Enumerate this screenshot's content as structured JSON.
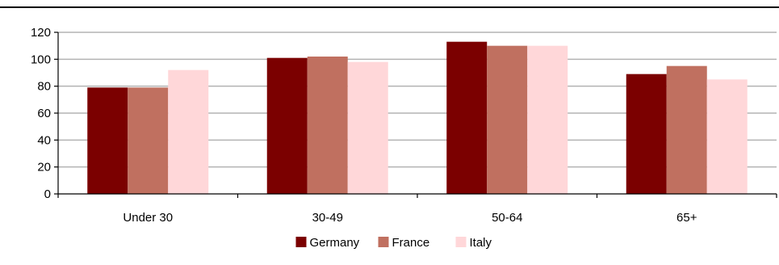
{
  "chart_data": {
    "type": "bar",
    "title": "",
    "xlabel": "",
    "ylabel": "",
    "categories": [
      "Under 30",
      "30-49",
      "50-64",
      "65+"
    ],
    "series": [
      {
        "name": "Germany",
        "color": "#7b0000",
        "values": [
          79,
          101,
          113,
          89
        ]
      },
      {
        "name": "France",
        "color": "#c07060",
        "values": [
          79,
          102,
          110,
          95
        ]
      },
      {
        "name": "Italy",
        "color": "#ffd7d9",
        "values": [
          92,
          98,
          110,
          85
        ]
      }
    ],
    "ylim": [
      0,
      120
    ],
    "yticks": [
      0,
      20,
      40,
      60,
      80,
      100,
      120
    ],
    "grid": true,
    "legend_position": "bottom-center"
  }
}
